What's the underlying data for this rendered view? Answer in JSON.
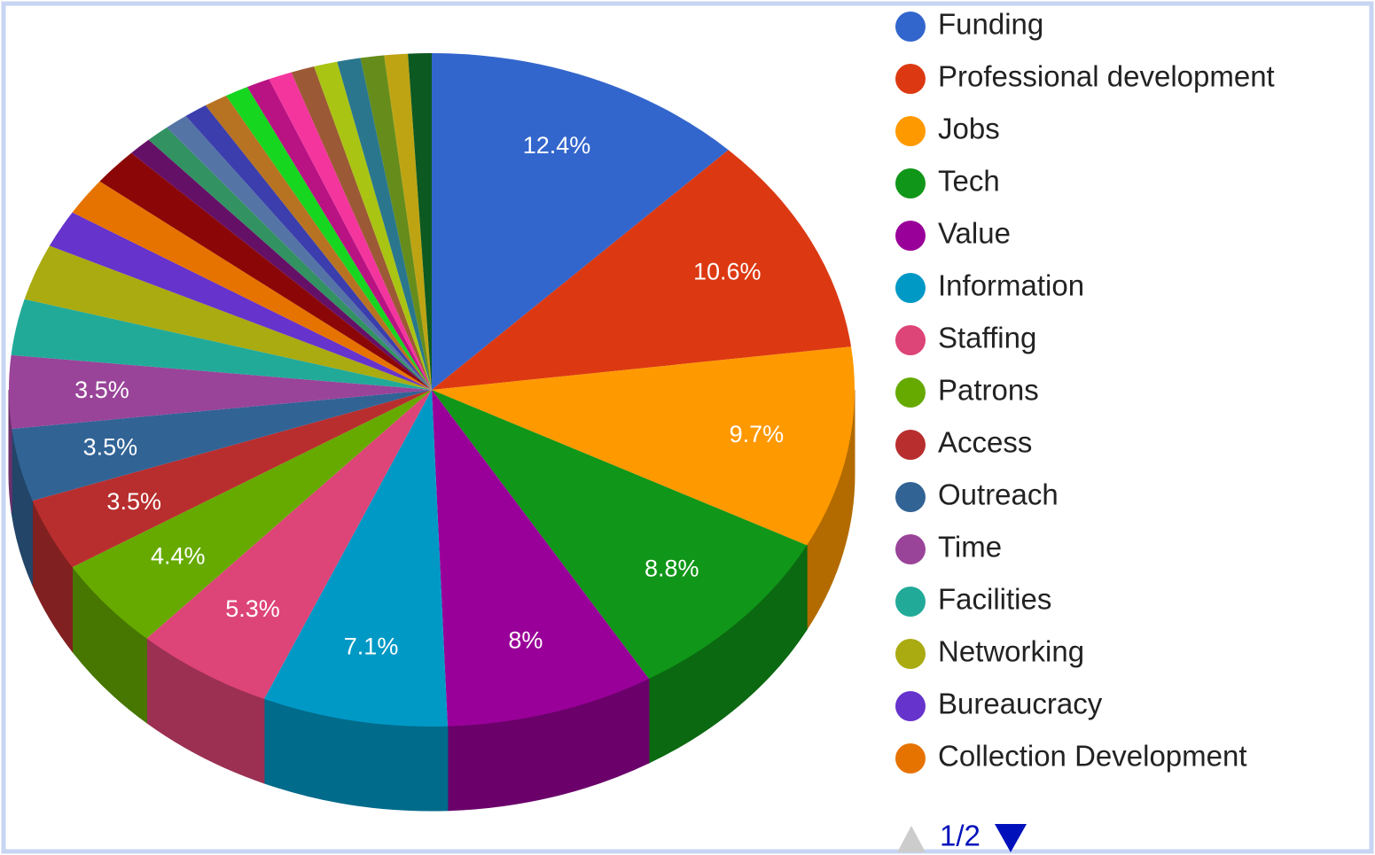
{
  "chart_data": {
    "type": "pie3d",
    "categories": [
      "Funding",
      "Professional development",
      "Jobs",
      "Tech",
      "Value",
      "Information",
      "Staffing",
      "Patrons",
      "Access",
      "Outreach",
      "Time",
      "Facilities",
      "Networking",
      "Bureaucracy",
      "Collection Development",
      null,
      null,
      null,
      null,
      null,
      null,
      null,
      null,
      null,
      null,
      null,
      null,
      null,
      null,
      null
    ],
    "values": [
      12.4,
      10.6,
      9.7,
      8.8,
      8,
      7.1,
      5.3,
      4.4,
      3.5,
      3.5,
      3.5,
      2.7,
      2.7,
      1.8,
      1.8,
      1.8,
      0.9,
      0.9,
      0.9,
      0.9,
      0.9,
      0.9,
      0.9,
      0.9,
      0.9,
      0.9,
      0.9,
      0.9,
      0.9,
      0.9
    ],
    "value_labels": [
      "12.4%",
      "10.6%",
      "9.7%",
      "8.8%",
      "8%",
      "7.1%",
      "5.3%",
      "4.4%",
      "3.5%",
      "3.5%",
      "3.5%",
      null,
      null,
      null,
      null,
      null,
      null,
      null,
      null,
      null,
      null,
      null,
      null,
      null,
      null,
      null,
      null,
      null,
      null,
      null
    ],
    "colors": [
      "#3366cc",
      "#dc3912",
      "#ff9900",
      "#109618",
      "#990099",
      "#0099c6",
      "#dd4477",
      "#66aa00",
      "#b82e2e",
      "#316395",
      "#994499",
      "#22aa99",
      "#aaaa11",
      "#6633cc",
      "#e67300",
      "#8b0707",
      "#651067",
      "#329262",
      "#5574a6",
      "#3b3eac",
      "#b77322",
      "#16d620",
      "#b91383",
      "#f4359e",
      "#9c5935",
      "#a9c413",
      "#2a778d",
      "#668d1c",
      "#bea413",
      "#0c5922"
    ],
    "legend_page": "1/2"
  }
}
